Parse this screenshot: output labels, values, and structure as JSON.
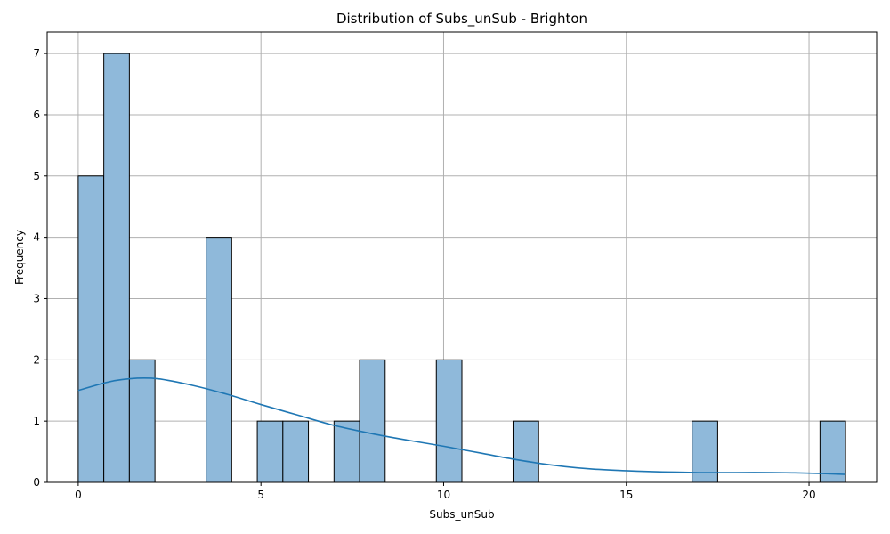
{
  "chart_data": {
    "type": "bar",
    "title": "Distribution of Subs_unSub - Brighton",
    "xlabel": "Subs_unSub",
    "ylabel": "Frequency",
    "xlim": [
      -0.85,
      21.85
    ],
    "ylim": [
      0,
      7.35
    ],
    "xticks": [
      0,
      5,
      10,
      15,
      20
    ],
    "yticks": [
      0,
      1,
      2,
      3,
      4,
      5,
      6,
      7
    ],
    "grid": true,
    "bin_width": 0.7,
    "bins": [
      {
        "x0": 0.0,
        "x1": 0.7,
        "count": 5
      },
      {
        "x0": 0.7,
        "x1": 1.4,
        "count": 7
      },
      {
        "x0": 1.4,
        "x1": 2.1,
        "count": 2
      },
      {
        "x0": 3.5,
        "x1": 4.2,
        "count": 4
      },
      {
        "x0": 4.9,
        "x1": 5.6,
        "count": 1
      },
      {
        "x0": 5.6,
        "x1": 6.3,
        "count": 1
      },
      {
        "x0": 7.0,
        "x1": 7.7,
        "count": 1
      },
      {
        "x0": 7.7,
        "x1": 8.4,
        "count": 2
      },
      {
        "x0": 9.8,
        "x1": 10.5,
        "count": 2
      },
      {
        "x0": 11.9,
        "x1": 12.6,
        "count": 1
      },
      {
        "x0": 16.8,
        "x1": 17.5,
        "count": 1
      },
      {
        "x0": 20.3,
        "x1": 21.0,
        "count": 1
      }
    ],
    "kde": {
      "x": [
        0,
        1,
        2,
        3,
        4,
        5,
        6,
        7,
        8,
        9,
        10,
        11,
        12,
        13,
        14,
        15,
        16,
        17,
        18,
        19,
        20,
        21
      ],
      "y": [
        1.5,
        1.66,
        1.7,
        1.6,
        1.45,
        1.27,
        1.1,
        0.93,
        0.8,
        0.69,
        0.59,
        0.48,
        0.37,
        0.28,
        0.22,
        0.19,
        0.17,
        0.16,
        0.16,
        0.16,
        0.15,
        0.13
      ]
    },
    "colors": {
      "bar_fill": "#8fb9da",
      "kde_line": "#1f77b4",
      "grid": "#b0b0b0"
    }
  }
}
